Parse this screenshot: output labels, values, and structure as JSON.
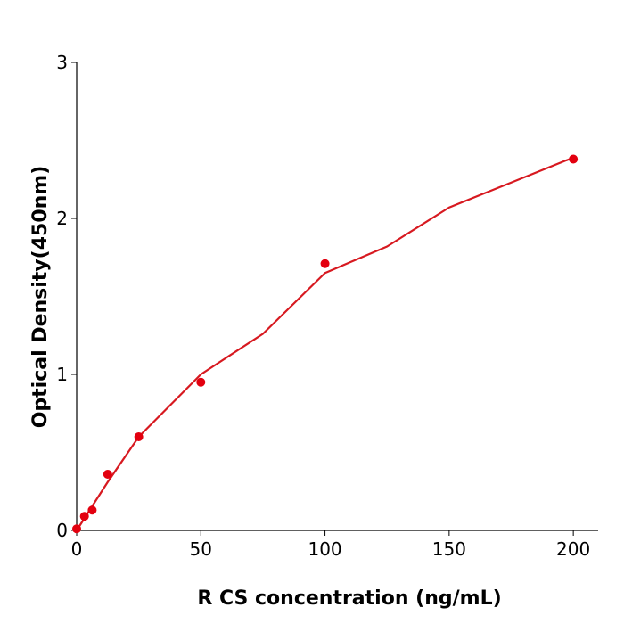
{
  "chart_data": {
    "type": "scatter",
    "xlabel": "R  CS concentration (ng/mL)",
    "ylabel": "Optical Density(450nm)",
    "x": [
      0,
      3.125,
      6.25,
      12.5,
      25,
      50,
      100,
      200
    ],
    "values": [
      0.01,
      0.09,
      0.13,
      0.36,
      0.6,
      0.95,
      1.71,
      2.38
    ],
    "color": "#e3000f",
    "fit": {
      "x": [
        0,
        12.5,
        25,
        50,
        75,
        100,
        125,
        150,
        175,
        200
      ],
      "values": [
        0,
        0.31,
        0.6,
        1.0,
        1.26,
        1.65,
        1.82,
        2.07,
        2.23,
        2.39
      ],
      "color": "#d71920"
    },
    "xlim": [
      0,
      210
    ],
    "ylim": [
      0,
      3
    ],
    "xticks": [
      0,
      50,
      100,
      150,
      200
    ],
    "yticks": [
      0,
      1,
      2,
      3
    ]
  }
}
